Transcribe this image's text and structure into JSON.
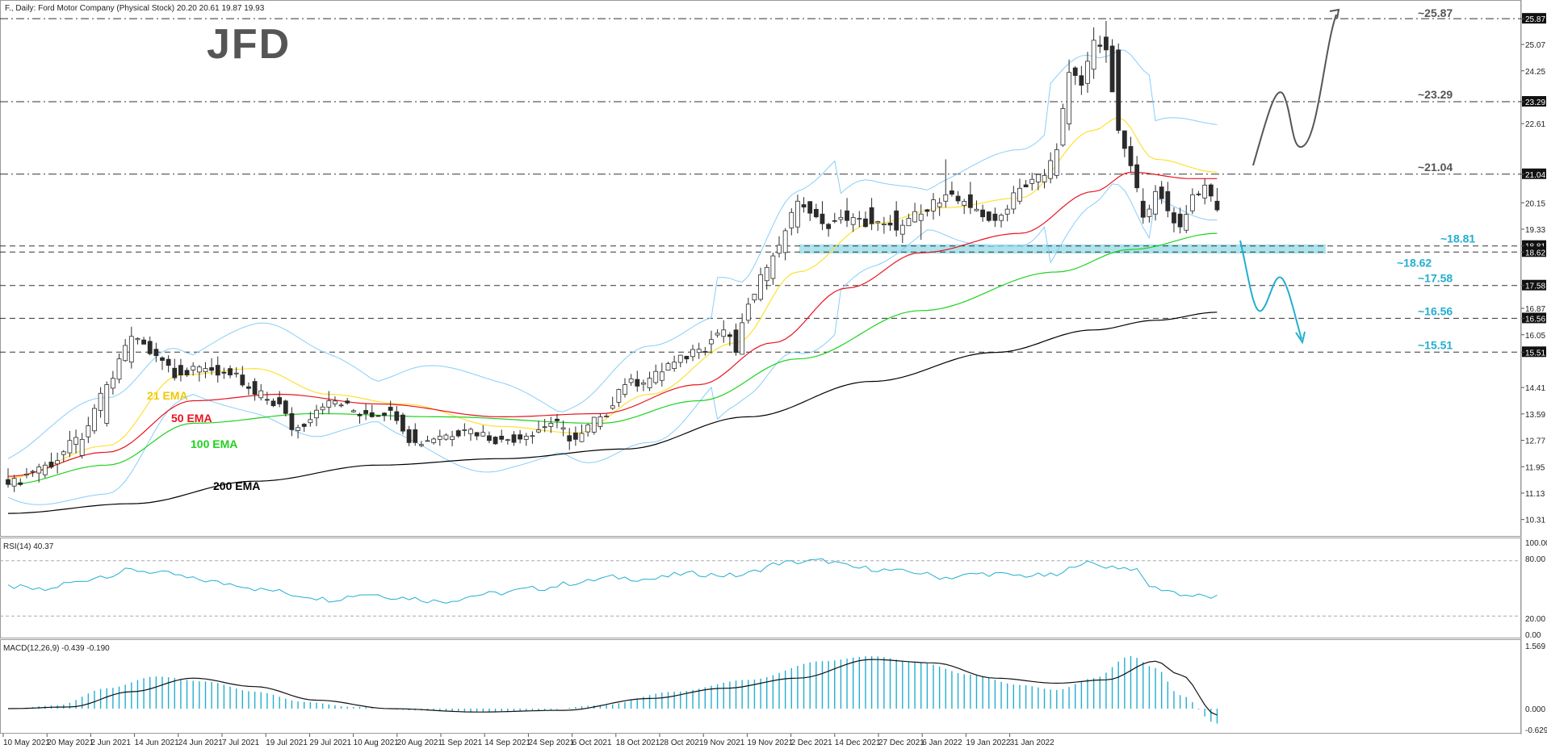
{
  "header": {
    "title": "F., Daily: Ford Motor Company (Physical Stock)  20.20 20.61 19.87 19.93",
    "logo": "JFD"
  },
  "colors": {
    "bull": "#ffffff",
    "bear": "#2b2b2b",
    "candle_outline": "#2b2b2b",
    "ema21": "#ffe033",
    "ema50": "#e8141e",
    "ema100": "#1ed21e",
    "ema200": "#000000",
    "bollinger": "#87cefa",
    "indicator": "#22aed0",
    "support_zone": "#9edeea",
    "scenario_up": "#555555",
    "scenario_down": "#22aed0"
  },
  "price_axis": {
    "labels": [
      "25.87",
      "25.07",
      "24.25",
      "23.29",
      "22.61",
      "21.04",
      "20.15",
      "19.33",
      "18.81",
      "18.62",
      "17.58",
      "16.87",
      "16.56",
      "16.05",
      "15.51",
      "14.41",
      "13.59",
      "12.77",
      "11.95",
      "11.13",
      "10.31"
    ],
    "highlighted": [
      "25.87",
      "23.29",
      "21.04",
      "18.81",
      "18.62",
      "17.58",
      "16.56",
      "15.51"
    ]
  },
  "date_axis": [
    "10 May 2021",
    "20 May 2021",
    "2 Jun 2021",
    "14 Jun 2021",
    "24 Jun 2021",
    "7 Jul 2021",
    "19 Jul 2021",
    "29 Jul 2021",
    "10 Aug 2021",
    "20 Aug 2021",
    "1 Sep 2021",
    "14 Sep 2021",
    "24 Sep 2021",
    "6 Oct 2021",
    "18 Oct 2021",
    "28 Oct 2021",
    "9 Nov 2021",
    "19 Nov 2021",
    "2 Dec 2021",
    "14 Dec 2021",
    "27 Dec 2021",
    "6 Jan 2022",
    "19 Jan 2022",
    "31 Jan 2022"
  ],
  "levels": [
    {
      "label": "~25.87",
      "value": 25.87,
      "style": "dash-dot",
      "color": "#555555"
    },
    {
      "label": "~23.29",
      "value": 23.29,
      "style": "dash-dot",
      "color": "#555555"
    },
    {
      "label": "~21.04",
      "value": 21.04,
      "style": "dash-dot",
      "color": "#555555"
    },
    {
      "label": "~18.81",
      "value": 18.81,
      "style": "dash",
      "color": "#22aed0"
    },
    {
      "label": "~18.62",
      "value": 18.62,
      "style": "dash",
      "color": "#22aed0"
    },
    {
      "label": "~17.58",
      "value": 17.58,
      "style": "dash",
      "color": "#22aed0"
    },
    {
      "label": "~16.56",
      "value": 16.56,
      "style": "dash",
      "color": "#22aed0"
    },
    {
      "label": "~15.51",
      "value": 15.51,
      "style": "dash",
      "color": "#22aed0"
    }
  ],
  "ema_labels": [
    {
      "text": "21 EMA",
      "color": "#f0c800"
    },
    {
      "text": "50 EMA",
      "color": "#e8141e"
    },
    {
      "text": "100 EMA",
      "color": "#1ed21e"
    },
    {
      "text": "200 EMA",
      "color": "#000000"
    }
  ],
  "rsi": {
    "label": "RSI(14) 40.37",
    "axis_labels": [
      "100.00",
      "80.00",
      "20.00",
      "0.00"
    ]
  },
  "macd": {
    "label": "MACD(12,26,9) -0.439 -0.190",
    "axis_labels": [
      "1.569",
      "0.000",
      "-0.629"
    ]
  },
  "chart_data": {
    "type": "candlestick",
    "title": "F., Daily: Ford Motor Company (Physical Stock)",
    "ylim": [
      9.9,
      26.2
    ],
    "series": [
      {
        "name": "F.",
        "ohlc_anchors": [
          [
            0,
            11.55,
            11.9,
            11.3,
            11.4
          ],
          [
            6,
            11.7,
            12.1,
            11.6,
            12.0
          ],
          [
            12,
            12.3,
            13.0,
            12.2,
            12.8
          ],
          [
            16,
            13.3,
            14.6,
            13.2,
            14.5
          ],
          [
            20,
            15.2,
            16.3,
            15.0,
            16.0
          ],
          [
            24,
            15.6,
            15.8,
            15.2,
            15.4
          ],
          [
            28,
            15.1,
            15.3,
            14.6,
            14.8
          ],
          [
            32,
            14.9,
            15.2,
            14.7,
            15.0
          ],
          [
            36,
            15.0,
            15.1,
            14.7,
            14.8
          ],
          [
            40,
            14.6,
            14.7,
            14.0,
            14.2
          ],
          [
            44,
            14.1,
            14.3,
            13.8,
            13.9
          ],
          [
            46,
            13.6,
            13.8,
            12.9,
            13.1
          ],
          [
            52,
            13.8,
            14.3,
            13.6,
            14.0
          ],
          [
            58,
            13.7,
            13.9,
            13.4,
            13.6
          ],
          [
            62,
            13.8,
            14.0,
            13.4,
            13.7
          ],
          [
            66,
            13.1,
            13.3,
            12.6,
            12.7
          ],
          [
            70,
            12.8,
            13.1,
            12.6,
            12.9
          ],
          [
            74,
            13.1,
            13.3,
            12.9,
            13.1
          ],
          [
            80,
            12.9,
            13.1,
            12.7,
            12.8
          ],
          [
            84,
            12.8,
            13.0,
            12.6,
            12.9
          ],
          [
            88,
            13.2,
            13.5,
            13.0,
            13.3
          ],
          [
            92,
            13.0,
            13.2,
            12.6,
            12.8
          ],
          [
            96,
            13.2,
            13.6,
            13.1,
            13.5
          ],
          [
            100,
            14.2,
            14.7,
            14.1,
            14.5
          ],
          [
            104,
            14.4,
            14.9,
            14.3,
            14.7
          ],
          [
            108,
            15.0,
            15.4,
            14.9,
            15.2
          ],
          [
            112,
            15.5,
            15.8,
            15.3,
            15.6
          ],
          [
            116,
            16.0,
            16.5,
            15.8,
            16.2
          ],
          [
            118,
            16.2,
            16.4,
            15.4,
            15.5
          ],
          [
            120,
            16.5,
            17.2,
            16.4,
            17.0
          ],
          [
            124,
            17.8,
            18.6,
            17.6,
            18.5
          ],
          [
            128,
            19.4,
            20.4,
            19.2,
            20.2
          ],
          [
            132,
            19.8,
            20.2,
            19.3,
            19.5
          ],
          [
            136,
            19.9,
            20.3,
            19.4,
            19.6
          ],
          [
            140,
            20.0,
            20.3,
            19.3,
            19.5
          ],
          [
            144,
            19.9,
            20.2,
            19.1,
            19.3
          ],
          [
            148,
            19.6,
            20.1,
            19.0,
            19.8
          ],
          [
            152,
            20.2,
            21.5,
            20.0,
            20.4
          ],
          [
            156,
            20.4,
            20.8,
            19.8,
            20.0
          ],
          [
            160,
            19.8,
            20.0,
            19.4,
            19.6
          ],
          [
            164,
            20.2,
            20.9,
            20.1,
            20.6
          ],
          [
            168,
            20.8,
            21.2,
            20.6,
            21.0
          ],
          [
            170,
            21.0,
            22.0,
            20.9,
            21.8
          ],
          [
            172,
            22.6,
            24.6,
            22.4,
            24.2
          ],
          [
            174,
            24.1,
            24.4,
            23.5,
            23.8
          ],
          [
            176,
            24.3,
            25.6,
            24.0,
            25.2
          ],
          [
            178,
            25.3,
            25.8,
            24.5,
            24.9
          ],
          [
            180,
            24.9,
            25.1,
            22.3,
            22.4
          ],
          [
            182,
            21.9,
            22.2,
            21.1,
            21.3
          ],
          [
            184,
            20.2,
            20.6,
            19.5,
            19.7
          ],
          [
            186,
            19.8,
            20.7,
            19.6,
            20.5
          ],
          [
            188,
            20.5,
            20.8,
            19.7,
            19.9
          ],
          [
            190,
            19.8,
            20.0,
            19.2,
            19.4
          ],
          [
            192,
            19.9,
            20.6,
            19.8,
            20.4
          ],
          [
            194,
            20.3,
            20.9,
            20.1,
            20.7
          ],
          [
            196,
            20.2,
            20.61,
            19.87,
            19.93
          ]
        ]
      },
      {
        "name": "21 EMA",
        "values": [
          [
            0,
            11.6
          ],
          [
            16,
            12.6
          ],
          [
            28,
            14.8
          ],
          [
            40,
            15.0
          ],
          [
            52,
            14.2
          ],
          [
            64,
            13.9
          ],
          [
            80,
            13.2
          ],
          [
            92,
            13.0
          ],
          [
            104,
            14.2
          ],
          [
            118,
            15.8
          ],
          [
            128,
            18.0
          ],
          [
            140,
            19.5
          ],
          [
            152,
            20.0
          ],
          [
            164,
            20.3
          ],
          [
            176,
            22.4
          ],
          [
            180,
            22.8
          ],
          [
            186,
            21.5
          ],
          [
            196,
            21.1
          ]
        ]
      },
      {
        "name": "50 EMA",
        "values": [
          [
            0,
            11.65
          ],
          [
            16,
            12.4
          ],
          [
            30,
            14.0
          ],
          [
            44,
            14.2
          ],
          [
            60,
            13.9
          ],
          [
            80,
            13.5
          ],
          [
            96,
            13.6
          ],
          [
            112,
            14.5
          ],
          [
            124,
            15.8
          ],
          [
            136,
            17.5
          ],
          [
            148,
            18.6
          ],
          [
            164,
            19.2
          ],
          [
            176,
            20.5
          ],
          [
            182,
            21.1
          ],
          [
            192,
            20.9
          ],
          [
            196,
            20.9
          ]
        ]
      },
      {
        "name": "100 EMA",
        "values": [
          [
            0,
            11.4
          ],
          [
            16,
            12.0
          ],
          [
            30,
            13.3
          ],
          [
            50,
            13.6
          ],
          [
            70,
            13.5
          ],
          [
            96,
            13.3
          ],
          [
            112,
            14.0
          ],
          [
            128,
            15.3
          ],
          [
            148,
            16.8
          ],
          [
            170,
            18.0
          ],
          [
            182,
            18.7
          ],
          [
            196,
            19.2
          ]
        ]
      },
      {
        "name": "200 EMA",
        "values": [
          [
            0,
            10.5
          ],
          [
            20,
            10.8
          ],
          [
            40,
            11.5
          ],
          [
            60,
            12.0
          ],
          [
            80,
            12.2
          ],
          [
            100,
            12.5
          ],
          [
            120,
            13.5
          ],
          [
            140,
            14.6
          ],
          [
            160,
            15.5
          ],
          [
            176,
            16.2
          ],
          [
            186,
            16.5
          ],
          [
            196,
            16.75
          ]
        ]
      },
      {
        "name": "RSI(14)",
        "values": [
          [
            0,
            52
          ],
          [
            6,
            48
          ],
          [
            10,
            56
          ],
          [
            16,
            64
          ],
          [
            20,
            70
          ],
          [
            26,
            66
          ],
          [
            30,
            60
          ],
          [
            36,
            55
          ],
          [
            42,
            48
          ],
          [
            48,
            42
          ],
          [
            52,
            38
          ],
          [
            58,
            44
          ],
          [
            64,
            40
          ],
          [
            70,
            36
          ],
          [
            78,
            44
          ],
          [
            86,
            50
          ],
          [
            92,
            56
          ],
          [
            98,
            62
          ],
          [
            104,
            60
          ],
          [
            110,
            66
          ],
          [
            118,
            64
          ],
          [
            126,
            78
          ],
          [
            132,
            80
          ],
          [
            138,
            72
          ],
          [
            146,
            68
          ],
          [
            152,
            62
          ],
          [
            158,
            66
          ],
          [
            164,
            64
          ],
          [
            170,
            64
          ],
          [
            174,
            78
          ],
          [
            178,
            74
          ],
          [
            182,
            72
          ],
          [
            186,
            50
          ],
          [
            192,
            42
          ],
          [
            196,
            40.37
          ]
        ]
      },
      {
        "name": "MACD",
        "values": [
          [
            0,
            0.0
          ],
          [
            8,
            0.1
          ],
          [
            16,
            0.6
          ],
          [
            24,
            0.95
          ],
          [
            32,
            0.8
          ],
          [
            40,
            0.5
          ],
          [
            48,
            0.2
          ],
          [
            56,
            0.05
          ],
          [
            66,
            -0.05
          ],
          [
            76,
            -0.1
          ],
          [
            86,
            -0.05
          ],
          [
            96,
            0.1
          ],
          [
            108,
            0.5
          ],
          [
            120,
            0.85
          ],
          [
            132,
            1.4
          ],
          [
            140,
            1.55
          ],
          [
            148,
            1.35
          ],
          [
            156,
            1.0
          ],
          [
            164,
            0.7
          ],
          [
            170,
            0.55
          ],
          [
            176,
            0.9
          ],
          [
            182,
            1.55
          ],
          [
            186,
            1.2
          ],
          [
            190,
            0.4
          ],
          [
            196,
            -0.439
          ]
        ]
      },
      {
        "name": "Signal",
        "values": [
          [
            0,
            0.0
          ],
          [
            10,
            0.05
          ],
          [
            20,
            0.5
          ],
          [
            30,
            0.9
          ],
          [
            40,
            0.65
          ],
          [
            50,
            0.25
          ],
          [
            62,
            0.0
          ],
          [
            76,
            -0.1
          ],
          [
            90,
            -0.05
          ],
          [
            104,
            0.3
          ],
          [
            116,
            0.6
          ],
          [
            128,
            0.9
          ],
          [
            140,
            1.45
          ],
          [
            150,
            1.35
          ],
          [
            160,
            0.9
          ],
          [
            170,
            0.75
          ],
          [
            178,
            0.85
          ],
          [
            186,
            1.4
          ],
          [
            190,
            1.0
          ],
          [
            196,
            -0.19
          ]
        ]
      }
    ]
  }
}
